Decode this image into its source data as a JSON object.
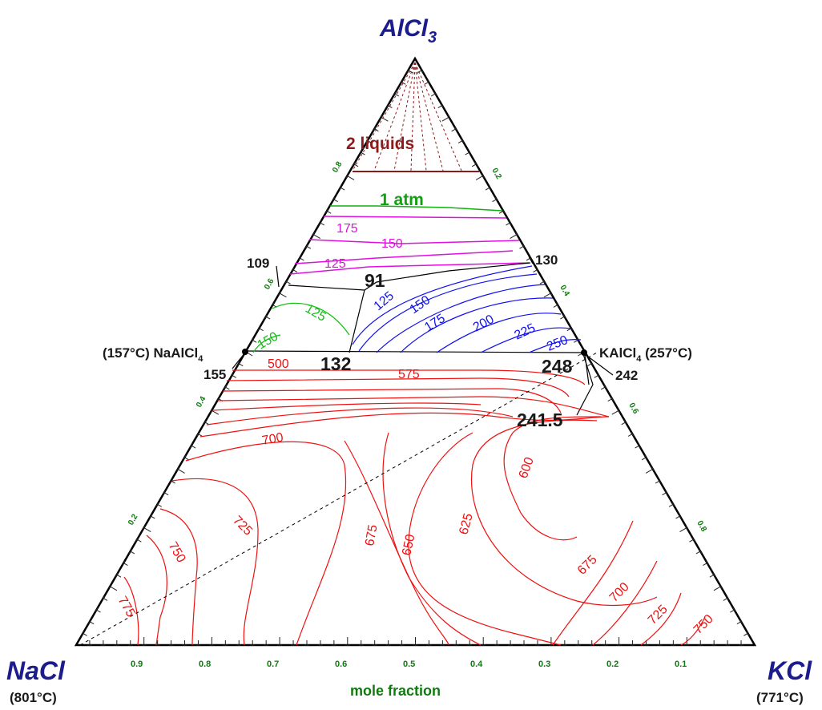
{
  "vertices": {
    "top": "AlCl",
    "top_sub": "3",
    "left": "NaCl",
    "left_temp": "(801°C)",
    "right": "KCl",
    "right_temp": "(771°C)"
  },
  "axis_title": "mole fraction",
  "bottom_ticks": [
    "0.9",
    "0.8",
    "0.7",
    "0.6",
    "0.5",
    "0.4",
    "0.3",
    "0.2",
    "0.1"
  ],
  "left_ticks": [
    "0.8",
    "0.6",
    "0.4",
    "0.2"
  ],
  "right_ticks": [
    "0.2",
    "0.4",
    "0.6",
    "0.8"
  ],
  "region_labels": {
    "two_liquids": "2 liquids",
    "one_atm": "1 atm"
  },
  "compounds": {
    "naalcl4": "(157°C) NaAlCl",
    "naalcl4_sub": "4",
    "kalcl4": "KAlCl",
    "kalcl4_sub": "4",
    "kalcl4_temp": " (257°C)"
  },
  "point_labels": {
    "p109": "109",
    "p130": "130",
    "p91": "91",
    "p132": "132",
    "p248": "248",
    "p241_5": "241.5",
    "p155": "155",
    "p242": "242"
  },
  "isotherm_labels": {
    "magenta": [
      "175",
      "150",
      "125"
    ],
    "blue": [
      "125",
      "150",
      "175",
      "200",
      "225",
      "250"
    ],
    "green": [
      "125",
      "150"
    ],
    "red": [
      "500",
      "575",
      "700",
      "725",
      "750",
      "775",
      "600",
      "625",
      "650",
      "675",
      "675",
      "700",
      "725",
      "750"
    ]
  },
  "colors": {
    "vertex": "#1c1c8c",
    "tick_text": "#107a10",
    "red": "#ee1111",
    "blue": "#1111ee",
    "magenta": "#e010e0",
    "green": "#10c010",
    "dark_red": "#8b1a1a",
    "black": "#000000"
  }
}
